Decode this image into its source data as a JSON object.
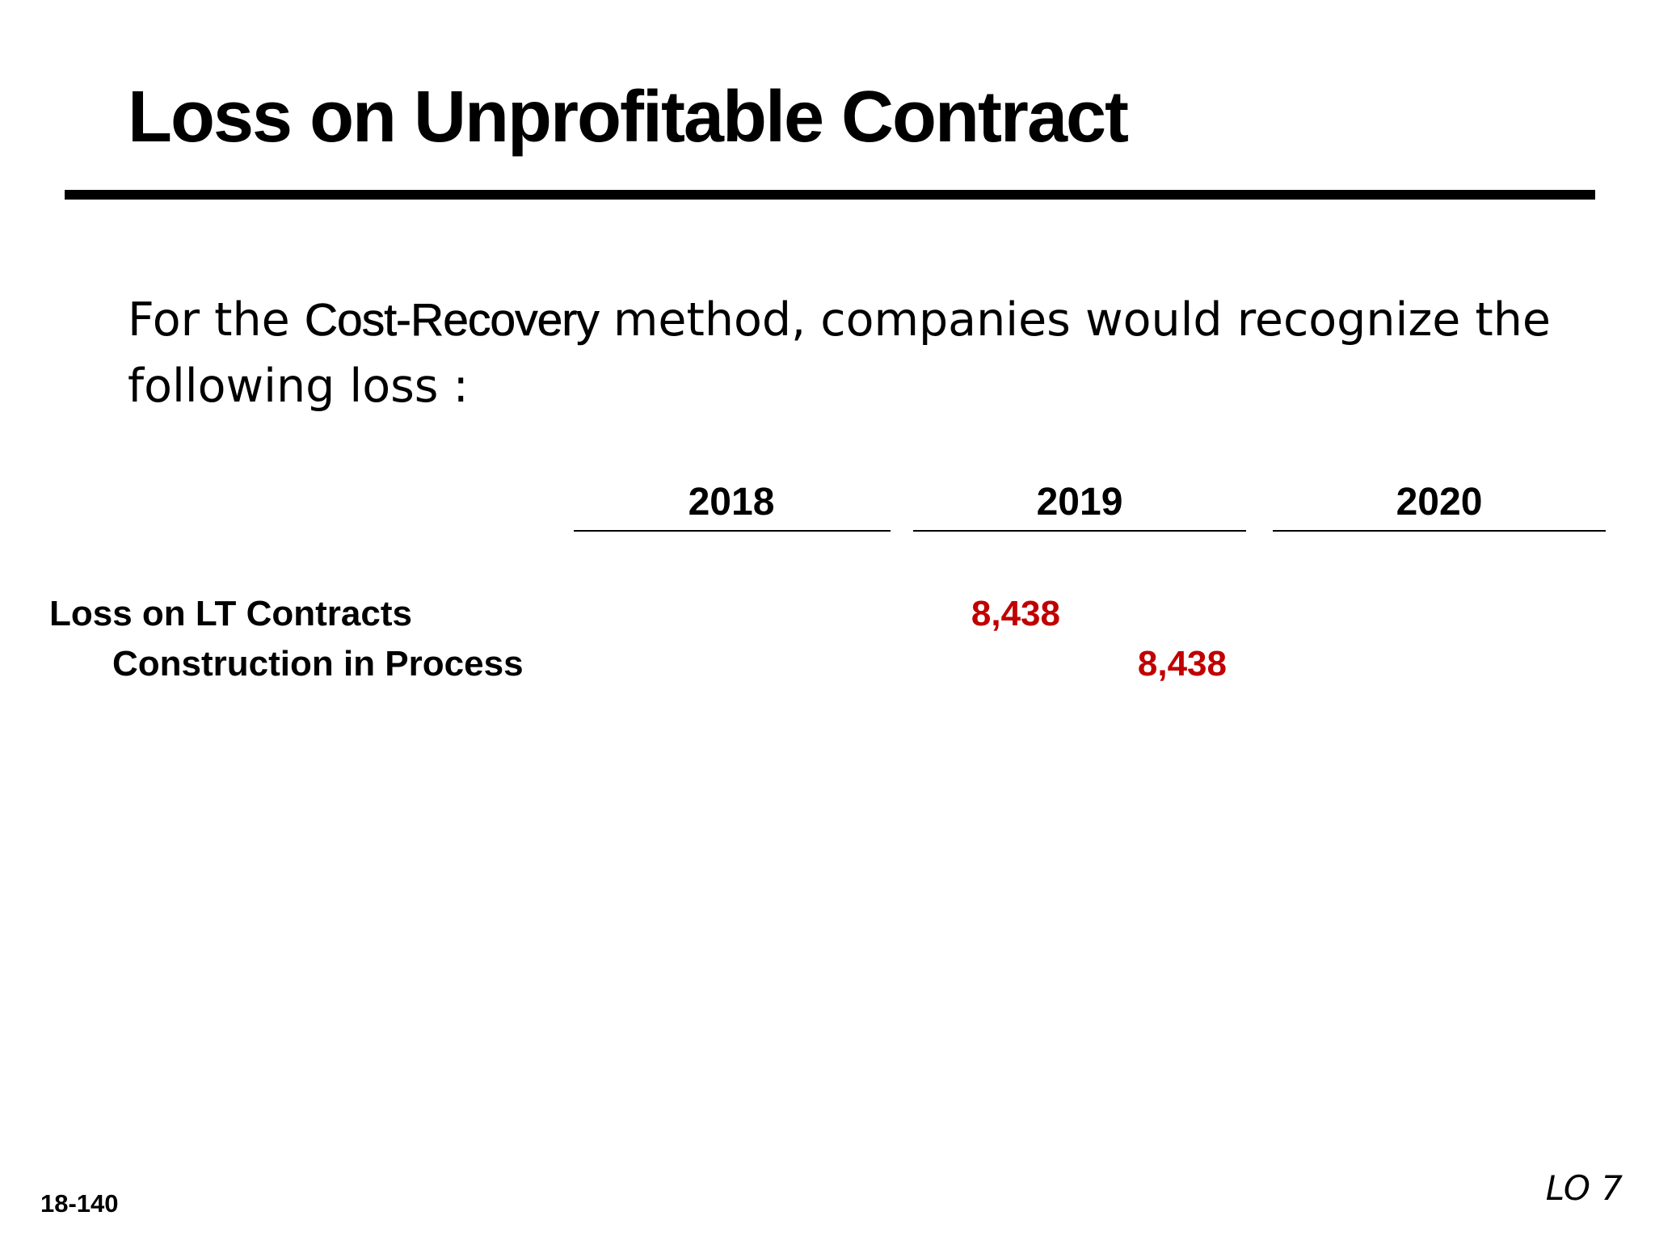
{
  "slide": {
    "title": "Loss on Unprofitable Contract",
    "intro": {
      "before": "For the ",
      "emphasis": "Cost-Recovery",
      "after": " method, companies would recognize the following loss :"
    },
    "columns": [
      "2018",
      "2019",
      "2020"
    ],
    "entries": [
      {
        "account": "Loss on LT Contracts",
        "debit_2019": "8,438"
      },
      {
        "account": "Construction in Process",
        "credit_2019": "8,438"
      }
    ],
    "slide_number": "18-140",
    "learning_objective": "LO 7"
  },
  "colors": {
    "amount": "#c00000",
    "text": "#000000"
  }
}
